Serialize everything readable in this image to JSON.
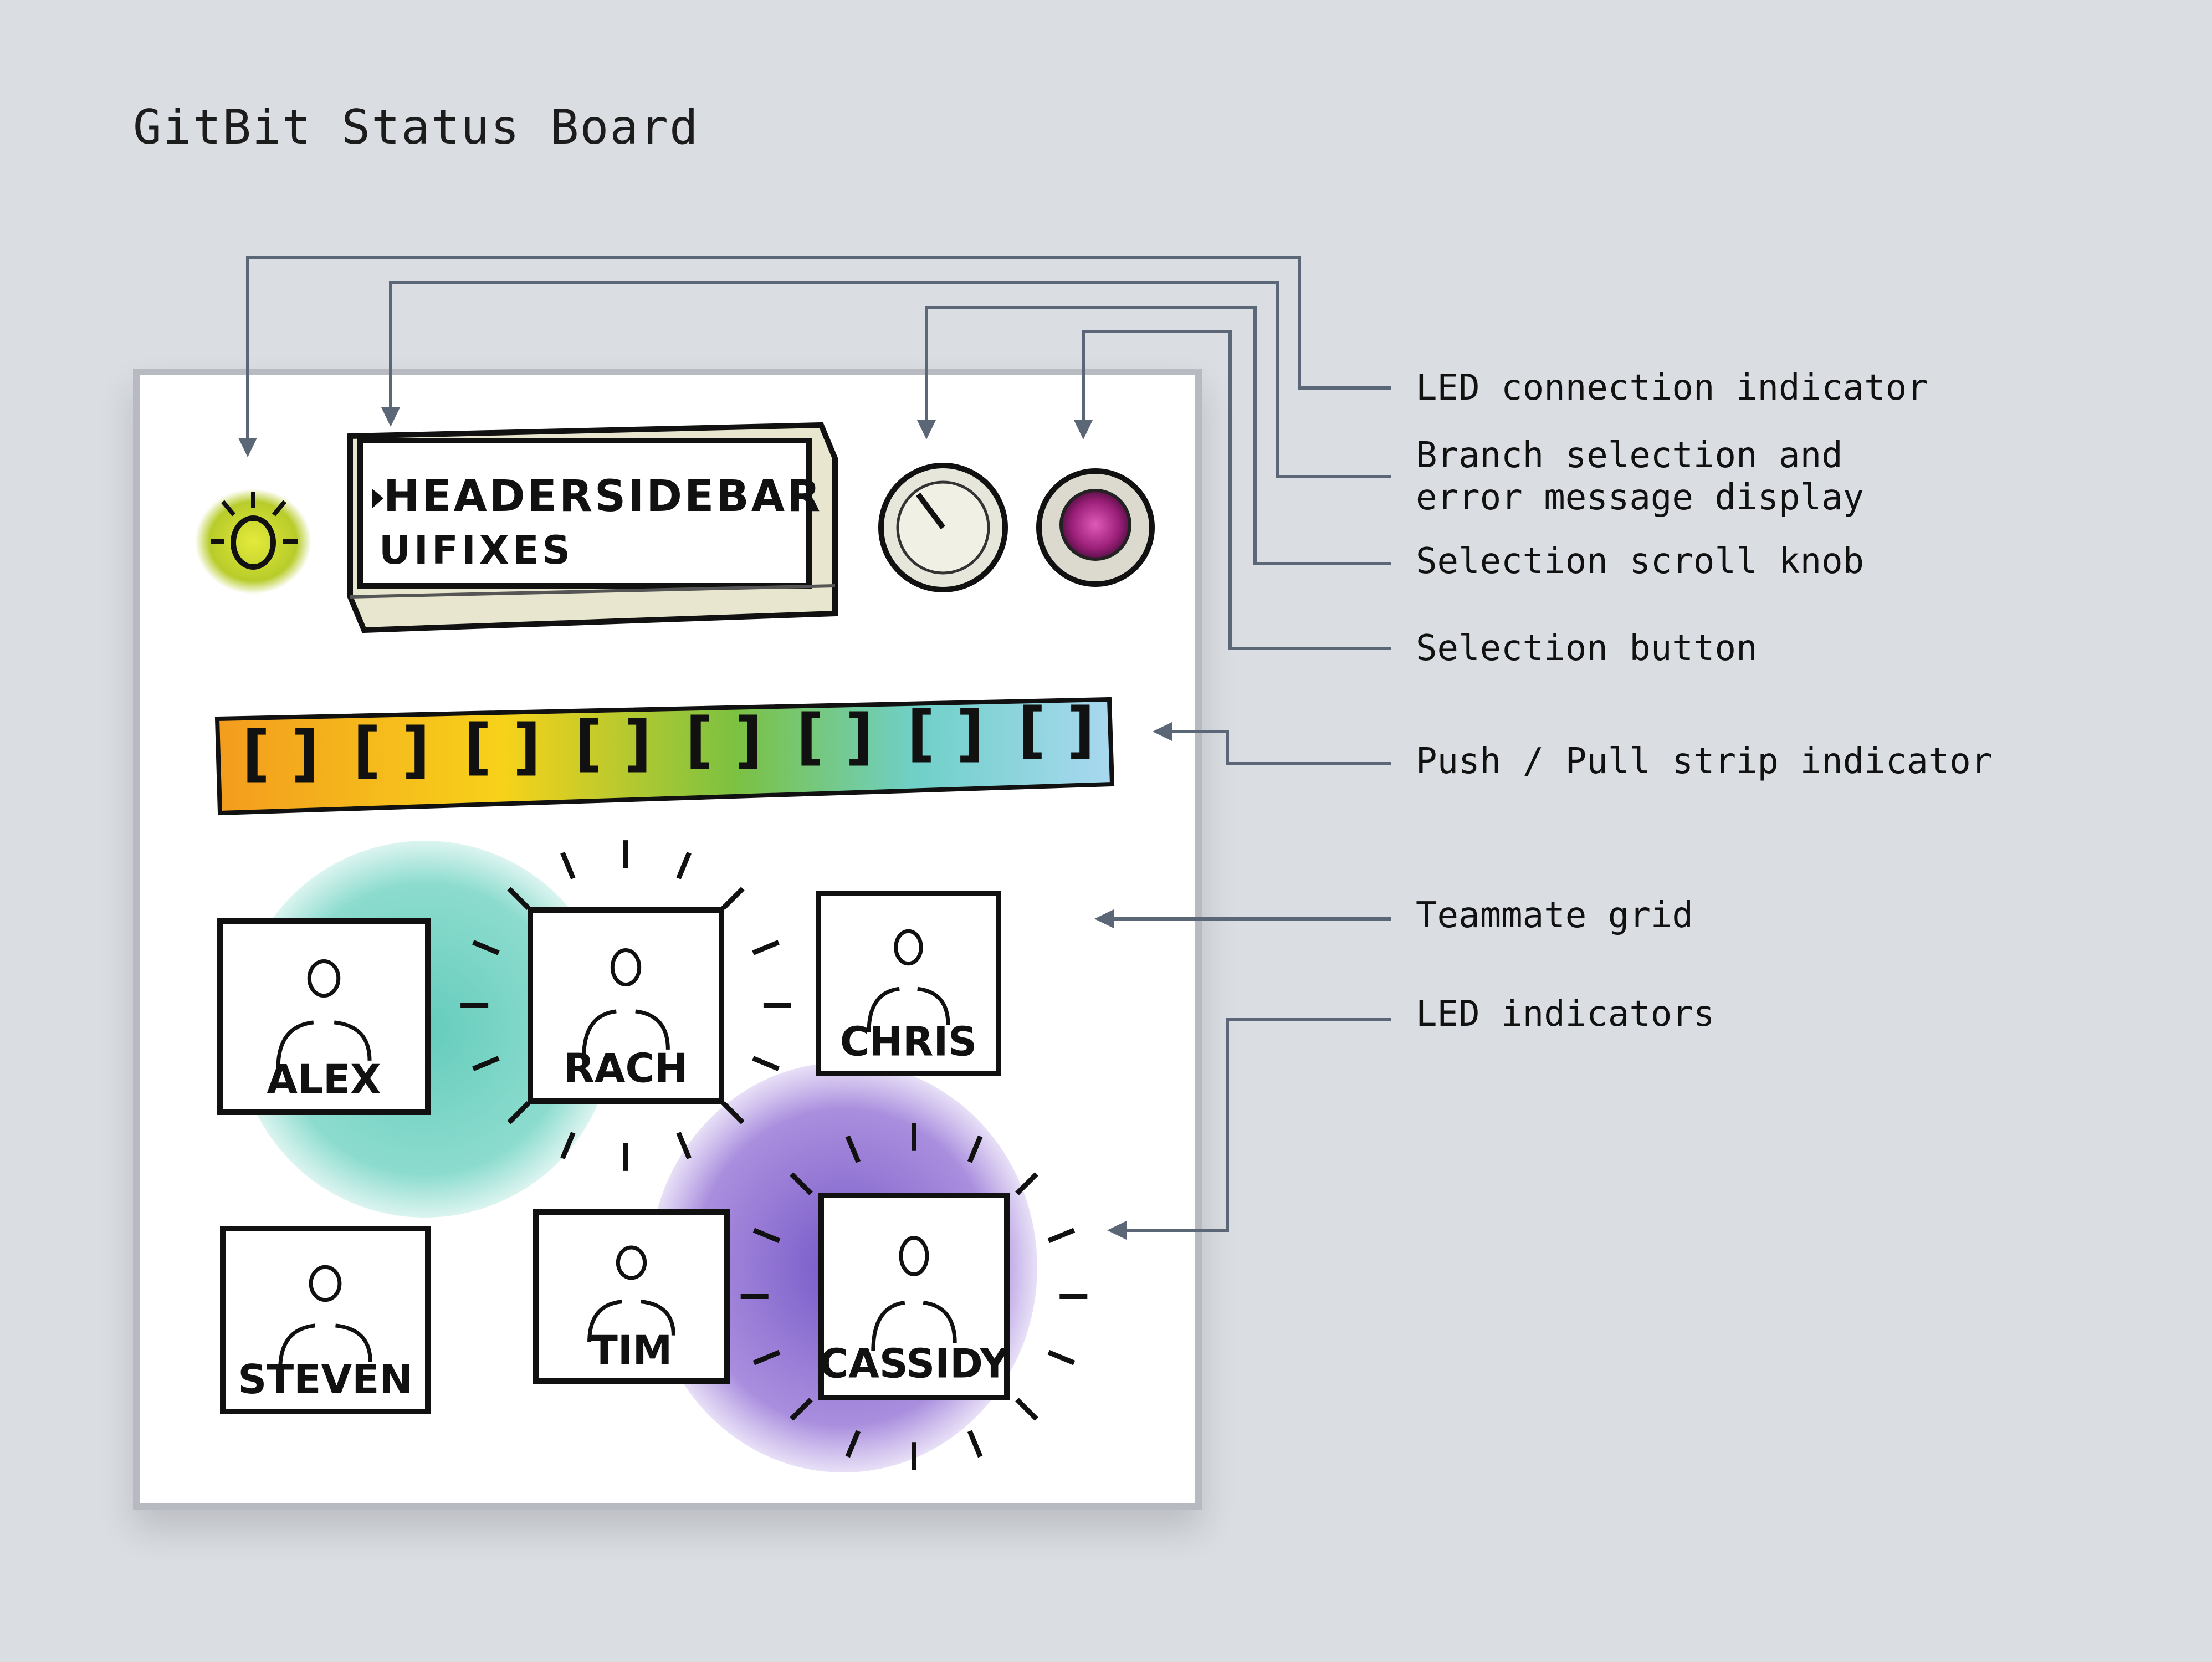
{
  "title": "GitBit Status Board",
  "display": {
    "line1": "HEADERSIDEBAR",
    "line2": "UIFIXES"
  },
  "teammates": [
    {
      "name": "ALEX",
      "led": "off"
    },
    {
      "name": "RACH",
      "led": "teal"
    },
    {
      "name": "CHRIS",
      "led": "off"
    },
    {
      "name": "STEVEN",
      "led": "off"
    },
    {
      "name": "TIM",
      "led": "off"
    },
    {
      "name": "CASSIDY",
      "led": "purple"
    }
  ],
  "callouts": {
    "led_connection": "LED connection indicator",
    "branch_display_line1": "Branch selection and",
    "branch_display_line2": "error message display",
    "scroll_knob": "Selection scroll knob",
    "selection_button": "Selection button",
    "push_pull_strip": "Push / Pull strip indicator",
    "teammate_grid": "Teammate grid",
    "led_indicators": "LED indicators"
  },
  "colors": {
    "background": "#dadde2",
    "leader_line": "#5b6676",
    "led_connection": "#c6d630",
    "selection_button": "#b02a8a",
    "led_teal": "#5cc9b8",
    "led_purple": "#8a68cf",
    "strip_gradient": [
      "#f39c1e",
      "#f7d21a",
      "#7bc142",
      "#6fd0c8",
      "#a9d8f0"
    ]
  }
}
